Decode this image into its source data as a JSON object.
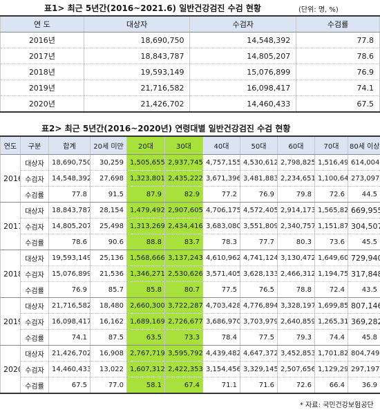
{
  "table1": {
    "title": "표1> 최근 5년간(2016~2021.6) 일반건강검진 수검 현황",
    "unit": "(단위: 명, %)",
    "headers": [
      "연 도",
      "대상자",
      "수검자",
      "수검률"
    ],
    "rows": [
      [
        "2016년",
        "18,690,750",
        "14,548,392",
        "77.8"
      ],
      [
        "2017년",
        "18,843,787",
        "14,805,207",
        "78.6"
      ],
      [
        "2018년",
        "19,593,149",
        "15,076,899",
        "76.9"
      ],
      [
        "2019년",
        "21,716,582",
        "16,098,417",
        "74.1"
      ],
      [
        "2020년",
        "21,426,702",
        "14,460,433",
        "67.5"
      ]
    ]
  },
  "table2": {
    "title": "표2> 최근 5년간(2016~2020년) 연령대별 일반건강검진 수검 현황",
    "headers": [
      "연도",
      "구분",
      "합계",
      "20세 미만",
      "20대",
      "30대",
      "40대",
      "50대",
      "60대",
      "70대",
      "80세 이상"
    ],
    "groups": [
      {
        "year": "2016",
        "rows": [
          [
            "대상자",
            "18,690,750",
            "30,259",
            "1,505,655",
            "2,937,745",
            "4,757,155",
            "4,530,612",
            "2,798,825",
            "1,516,495",
            "614,004"
          ],
          [
            "수검자",
            "14,548,392",
            "27,698",
            "1,323,801",
            "2,435,222",
            "3,671,396",
            "3,481,883",
            "2,234,651",
            "1,100,644",
            "273,097"
          ],
          [
            "수검률",
            "77.8",
            "91.5",
            "87.9",
            "82.9",
            "77.2",
            "76.9",
            "79.8",
            "72.6",
            "44.5"
          ]
        ]
      },
      {
        "year": "2017",
        "rows": [
          [
            "대상자",
            "18,843,787",
            "28,154",
            "1,479,492",
            "2,907,605",
            "4,706,175",
            "4,572,405",
            "2,914,173",
            "1,565,828",
            "669,955"
          ],
          [
            "수검자",
            "14,805,207",
            "25,498",
            "1,313,269",
            "2,434,416",
            "3,683,080",
            "3,551,809",
            "2,340,757",
            "1,151,871",
            "304,507"
          ],
          [
            "수검률",
            "78.6",
            "90.6",
            "88.8",
            "83.7",
            "78.3",
            "77.7",
            "80.3",
            "73.6",
            "45.5"
          ]
        ]
      },
      {
        "year": "2018",
        "rows": [
          [
            "대상자",
            "19,593,149",
            "25,136",
            "1,568,666",
            "3,137,243",
            "4,610,962",
            "4,741,124",
            "3,130,472",
            "1,649,606",
            "729,940"
          ],
          [
            "수검자",
            "15,076,899",
            "21,536",
            "1,346,271",
            "2,530,626",
            "3,571,405",
            "3,628,133",
            "2,466,312",
            "1,194,756",
            "317,848"
          ],
          [
            "수검률",
            "76.9",
            "85.7",
            "85.8",
            "80.7",
            "77.5",
            "76.5",
            "78.8",
            "72.4",
            "43.5"
          ]
        ]
      },
      {
        "year": "2019",
        "rows": [
          [
            "대상자",
            "21,716,582",
            "18,480",
            "2,660,300",
            "3,722,287",
            "4,703,428",
            "4,776,894",
            "3,328,197",
            "1,699,850",
            "807,146"
          ],
          [
            "수검자",
            "16,098,417",
            "16,162",
            "1,689,169",
            "2,726,677",
            "3,686,970",
            "3,703,979",
            "2,640,859",
            "1,265,319",
            "369,282"
          ],
          [
            "수검률",
            "74.1",
            "87.5",
            "63.5",
            "73.3",
            "78.4",
            "77.5",
            "79.3",
            "74.4",
            "45.8"
          ]
        ]
      },
      {
        "year": "2020",
        "rows": [
          [
            "대상자",
            "21,426,702",
            "16,908",
            "2,767,719",
            "3,595,792",
            "4,439,482",
            "4,647,372",
            "3,452,853",
            "1,701,827",
            "804,749"
          ],
          [
            "수검자",
            "14,460,433",
            "13,022",
            "1,607,312",
            "2,422,353",
            "3,154,456",
            "3,329,145",
            "2,507,656",
            "1,129,292",
            "297,197"
          ],
          [
            "수검률",
            "67.5",
            "77.0",
            "58.1",
            "67.4",
            "71.1",
            "71.6",
            "72.6",
            "66.4",
            "36.9"
          ]
        ]
      }
    ],
    "highlight_color": "#a8e03c"
  },
  "source": "* 자료: 국민건강보험공단"
}
